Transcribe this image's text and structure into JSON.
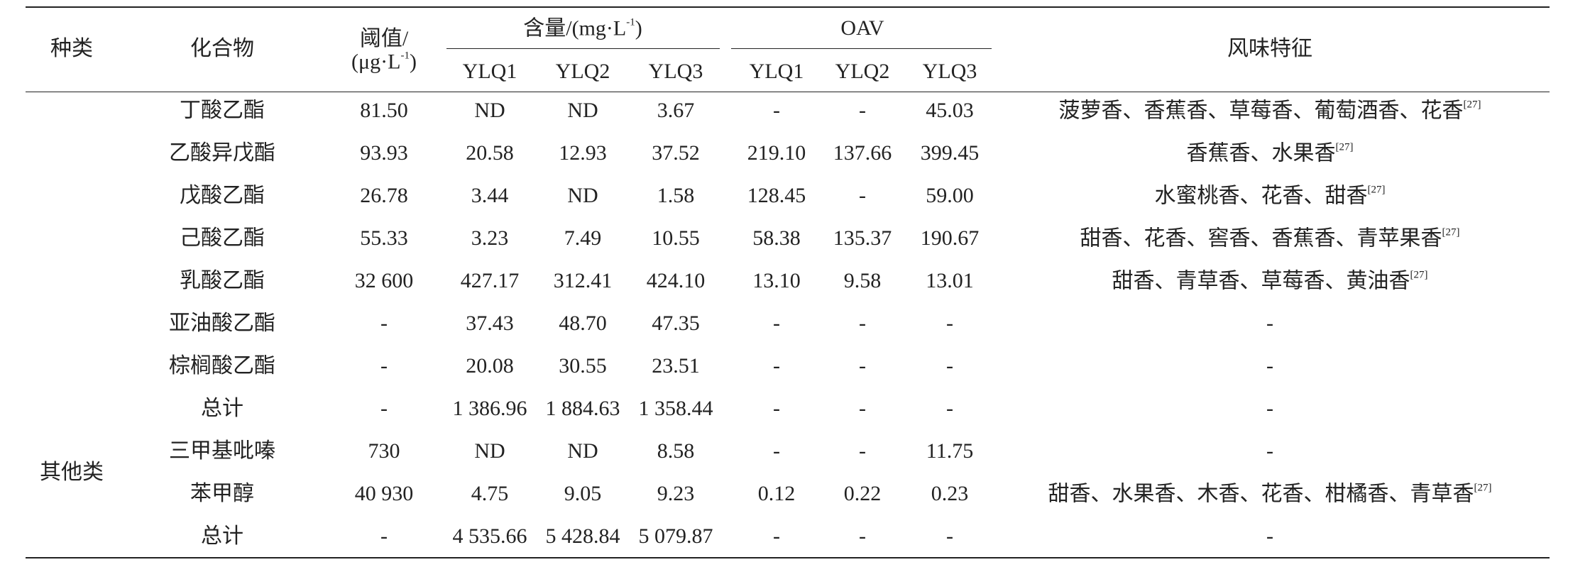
{
  "header": {
    "category": "种类",
    "compound": "化合物",
    "threshold": {
      "line1": "阈值/",
      "pre": "(μg·L",
      "sup": "-1",
      "post": ")"
    },
    "content": {
      "pre": "含量/(mg·L",
      "sup": "-1",
      "post": ")"
    },
    "oav": "OAV",
    "flavor": "风味特征",
    "content_samples": [
      "YLQ1",
      "YLQ2",
      "YLQ3"
    ],
    "oav_samples": [
      "YLQ1",
      "YLQ2",
      "YLQ3"
    ]
  },
  "group": "其他类",
  "rows": [
    {
      "cells": [
        "丁酸乙酯",
        "81.50",
        "ND",
        "ND",
        "3.67",
        "-",
        "-",
        "45.03"
      ],
      "flavor": {
        "text": "菠萝香、香蕉香、草莓香、葡萄酒香、花香",
        "ref": "[27]"
      }
    },
    {
      "cells": [
        "乙酸异戊酯",
        "93.93",
        "20.58",
        "12.93",
        "37.52",
        "219.10",
        "137.66",
        "399.45"
      ],
      "flavor": {
        "text": "香蕉香、水果香",
        "ref": "[27]"
      }
    },
    {
      "cells": [
        "戊酸乙酯",
        "26.78",
        "3.44",
        "ND",
        "1.58",
        "128.45",
        "-",
        "59.00"
      ],
      "flavor": {
        "text": "水蜜桃香、花香、甜香",
        "ref": "[27]"
      }
    },
    {
      "cells": [
        "己酸乙酯",
        "55.33",
        "3.23",
        "7.49",
        "10.55",
        "58.38",
        "135.37",
        "190.67"
      ],
      "flavor": {
        "text": "甜香、花香、窖香、香蕉香、青苹果香",
        "ref": "[27]"
      }
    },
    {
      "cells": [
        "乳酸乙酯",
        "32 600",
        "427.17",
        "312.41",
        "424.10",
        "13.10",
        "9.58",
        "13.01"
      ],
      "flavor": {
        "text": "甜香、青草香、草莓香、黄油香",
        "ref": "[27]"
      }
    },
    {
      "cells": [
        "亚油酸乙酯",
        "-",
        "37.43",
        "48.70",
        "47.35",
        "-",
        "-",
        "-"
      ],
      "flavor": {
        "text": "-"
      }
    },
    {
      "cells": [
        "棕榈酸乙酯",
        "-",
        "20.08",
        "30.55",
        "23.51",
        "-",
        "-",
        "-"
      ],
      "flavor": {
        "text": "-"
      }
    },
    {
      "cells": [
        "总计",
        "-",
        "1 386.96",
        "1 884.63",
        "1 358.44",
        "-",
        "-",
        "-"
      ],
      "flavor": {
        "text": "-"
      }
    },
    {
      "cells": [
        "三甲基吡嗪",
        "730",
        "ND",
        "ND",
        "8.58",
        "-",
        "-",
        "11.75"
      ],
      "flavor": {
        "text": "-"
      }
    },
    {
      "cells": [
        "苯甲醇",
        "40 930",
        "4.75",
        "9.05",
        "9.23",
        "0.12",
        "0.22",
        "0.23"
      ],
      "flavor": {
        "text": "甜香、水果香、木香、花香、柑橘香、青草香",
        "ref": "[27]"
      }
    },
    {
      "cells": [
        "总计",
        "-",
        "4 535.66",
        "5 428.84",
        "5 079.87",
        "-",
        "-",
        "-"
      ],
      "flavor": {
        "text": "-"
      }
    }
  ]
}
